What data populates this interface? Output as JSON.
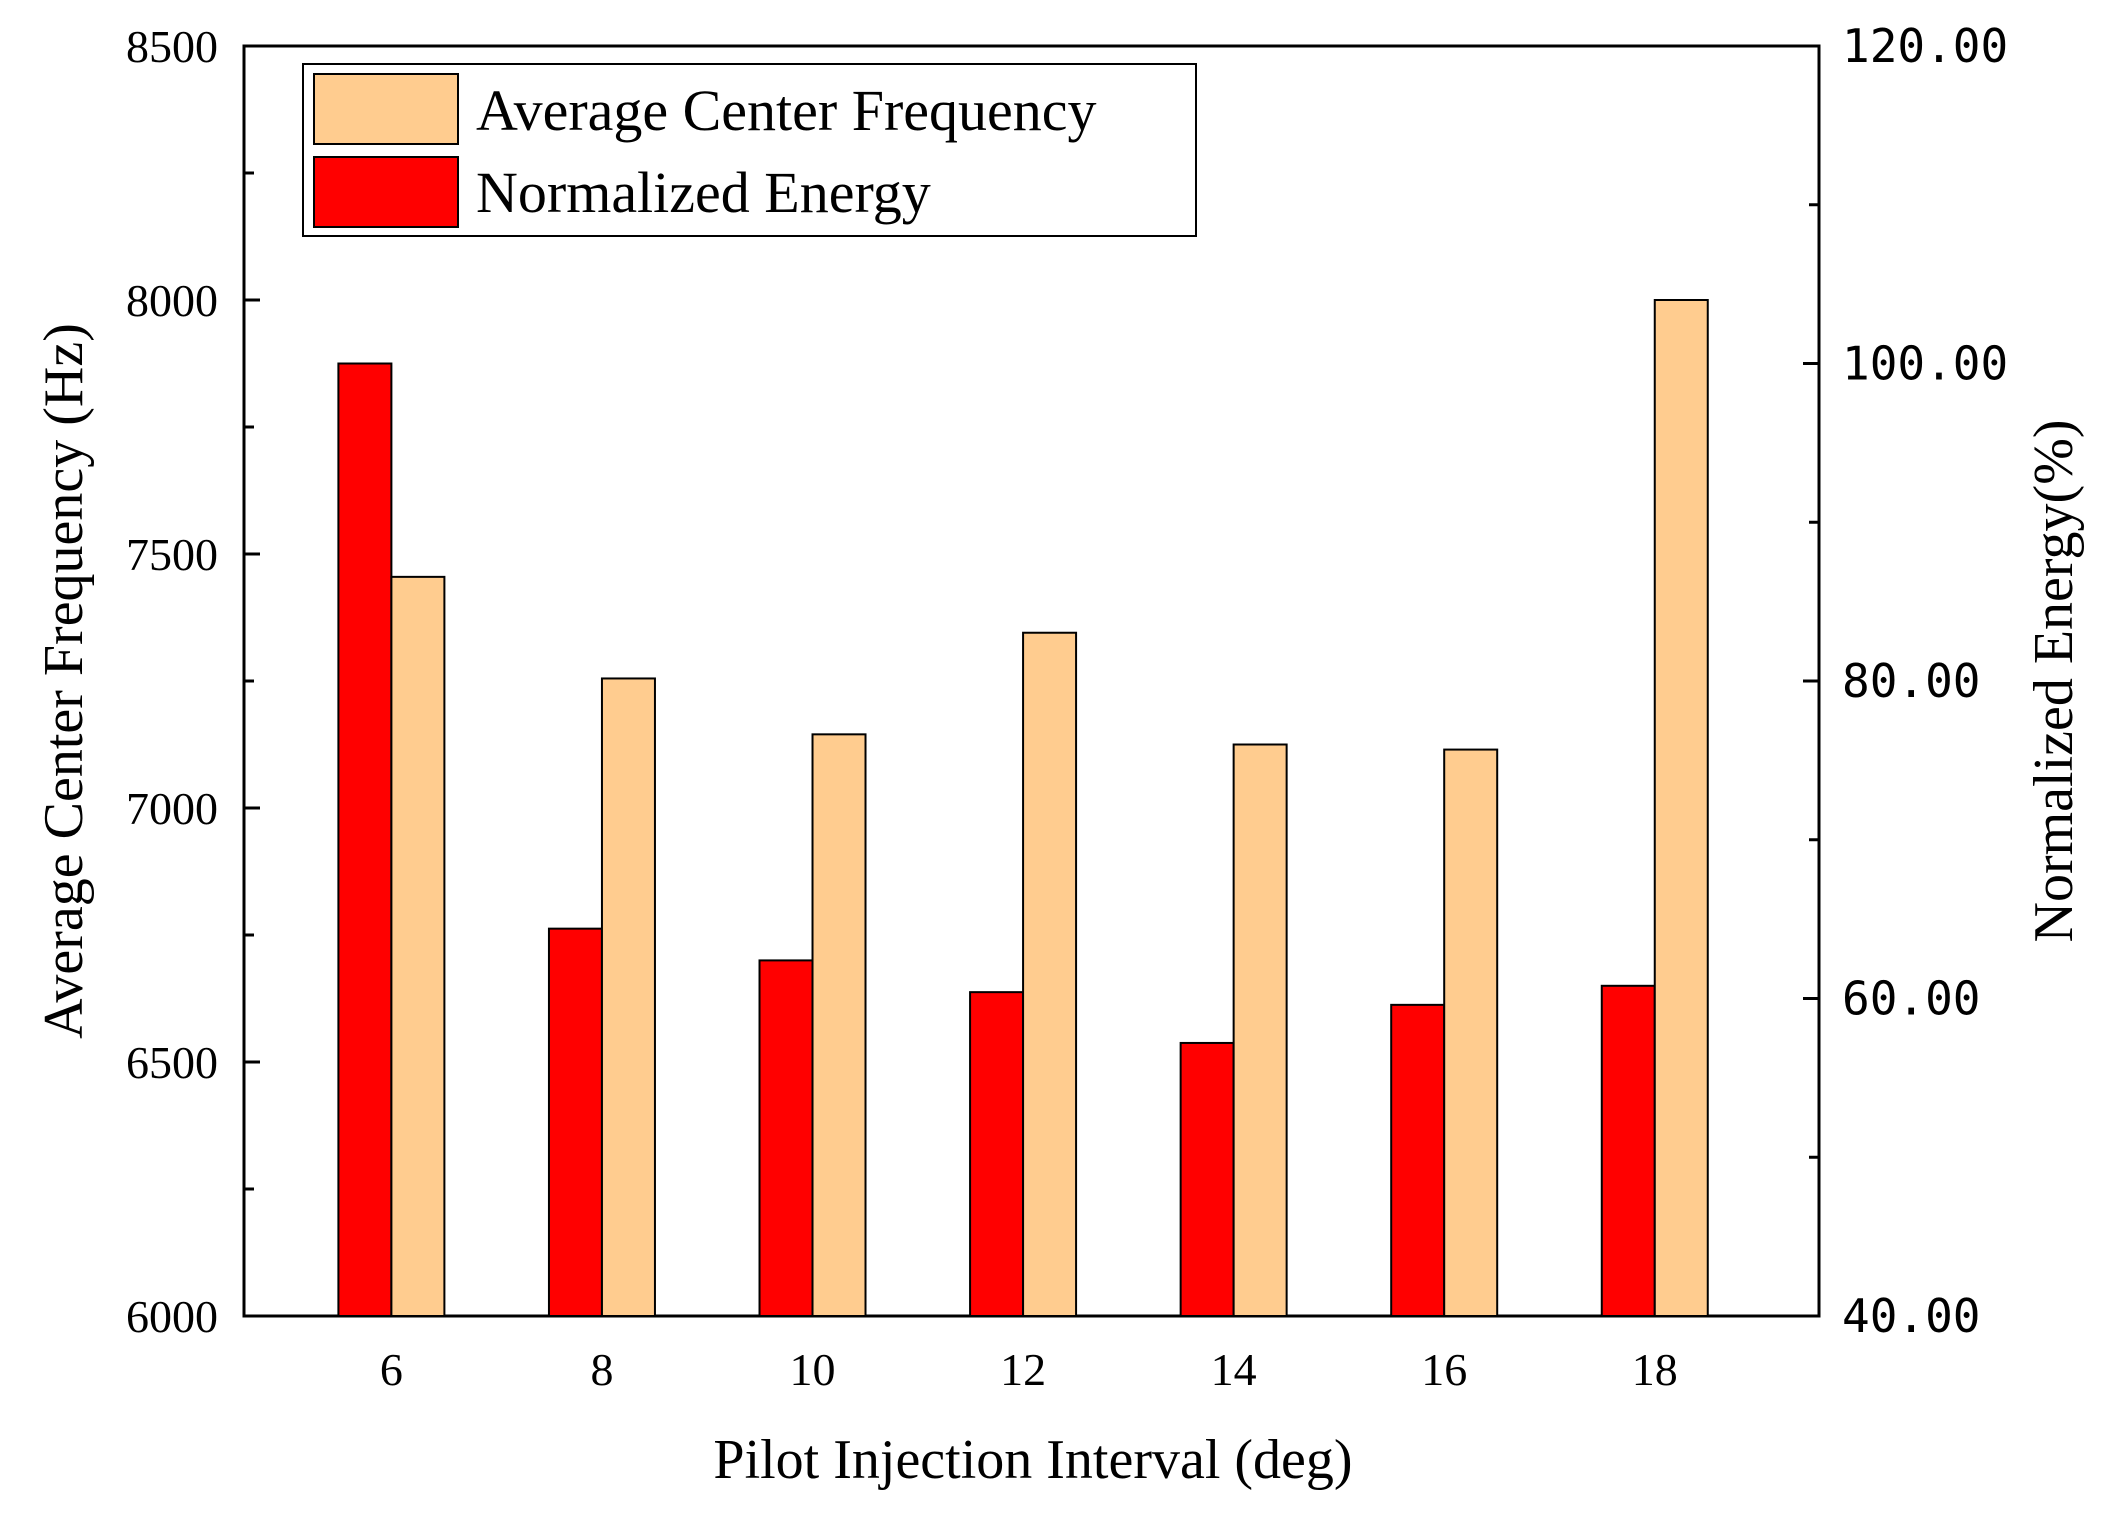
{
  "chart_data": {
    "type": "bar",
    "title": "",
    "xlabel": "Pilot Injection Interval (deg)",
    "ylabel": "Average Center Frequency (Hz)",
    "y2label": "Normalized Energy(%)",
    "categories": [
      "6",
      "8",
      "10",
      "12",
      "14",
      "16",
      "18"
    ],
    "ylim": [
      6000,
      8500
    ],
    "y2lim": [
      40,
      120
    ],
    "yticks": [
      "6000",
      "6500",
      "7000",
      "7500",
      "8000",
      "8500"
    ],
    "y2ticks": [
      "40.00",
      "60.00",
      "80.00",
      "100.00",
      "120.00"
    ],
    "series": [
      {
        "name": "Normalized Energy",
        "axis": "right",
        "color": "#ff0000",
        "values": [
          100.0,
          64.4,
          62.4,
          60.4,
          57.2,
          59.6,
          60.8
        ]
      },
      {
        "name": "Average Center Frequency",
        "axis": "left",
        "color": "#ffcc8f",
        "values": [
          7455,
          7255,
          7145,
          7345,
          7125,
          7115,
          8000
        ]
      }
    ],
    "legend": {
      "position": "top-left",
      "entries": [
        "Average Center Frequency",
        "Normalized Energy"
      ]
    }
  }
}
